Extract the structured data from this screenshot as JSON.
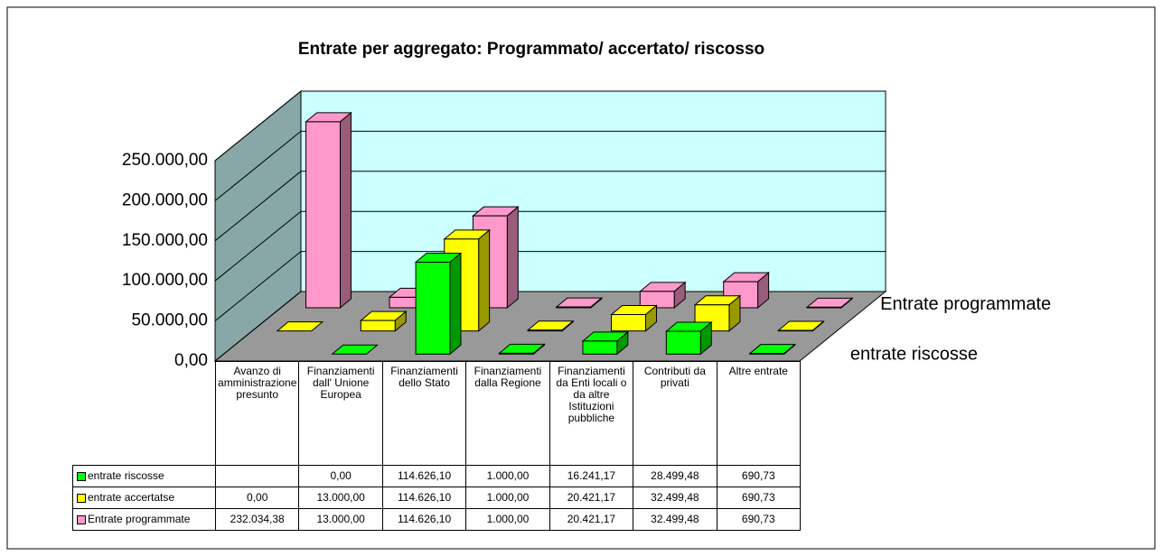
{
  "chart_data": {
    "type": "bar3d",
    "title": "Entrate per aggregato: Programmato/ accertato/ riscosso",
    "categories": [
      "Avanzo di amministrazione presunto",
      "Finanziamenti dall' Unione Europea",
      "Finanziamenti dello Stato",
      "Finanziamenti dalla Regione",
      "Finanziamenti da Enti locali o da altre Istituzioni pubbliche",
      "Contributi da privati",
      "Altre entrate"
    ],
    "series": [
      {
        "name": "entrate riscosse",
        "color": "#00ff00",
        "depth_label": true,
        "values": [
          null,
          0,
          114626.1,
          1000,
          16241.17,
          28499.48,
          690.73
        ],
        "value_labels": [
          null,
          "0,00",
          "114.626,10",
          "1.000,00",
          "16.241,17",
          "28.499,48",
          "690,73"
        ]
      },
      {
        "name": "entrate accertatse",
        "color": "#ffff00",
        "depth_label": false,
        "values": [
          0,
          13000,
          114626.1,
          1000,
          20421.17,
          32499.48,
          690.73
        ],
        "value_labels": [
          "0,00",
          "13.000,00",
          "114.626,10",
          "1.000,00",
          "20.421,17",
          "32.499,48",
          "690,73"
        ]
      },
      {
        "name": "Entrate programmate",
        "color": "#ff99cc",
        "depth_label": true,
        "values": [
          232034.38,
          13000,
          114626.1,
          1000,
          20421.17,
          32499.48,
          690.73
        ],
        "value_labels": [
          "232.034,38",
          "13.000,00",
          "114.626,10",
          "1.000,00",
          "20.421,17",
          "32.499,48",
          "690,73"
        ]
      }
    ],
    "ylim": [
      0,
      250000
    ],
    "yticks": [
      {
        "value": 0,
        "label": "0,00"
      },
      {
        "value": 50000,
        "label": "50.000,00"
      },
      {
        "value": 100000,
        "label": "100.000,00"
      },
      {
        "value": 150000,
        "label": "150.000,00"
      },
      {
        "value": 200000,
        "label": "200.000,00"
      },
      {
        "value": 250000,
        "label": "250.000,00"
      }
    ],
    "grid": true
  }
}
